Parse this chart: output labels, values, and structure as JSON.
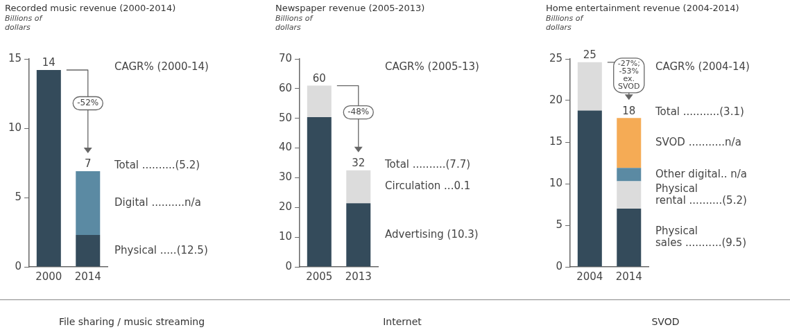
{
  "chart_data": [
    {
      "type": "bar",
      "title": "Recorded music revenue (2000-2014)",
      "ylabel": "Billions of dollars",
      "categories": [
        "2000",
        "2014"
      ],
      "stacked": true,
      "series": [
        {
          "name": "Physical .....(12.5)",
          "color": "#344b5b",
          "values": [
            14.2,
            2.3
          ]
        },
        {
          "name": "Digital ..........n/a",
          "color": "#5b8aa3",
          "values": [
            null,
            4.6
          ]
        }
      ],
      "ylim": [
        0,
        15
      ],
      "yticks": [
        0,
        5,
        10,
        15
      ],
      "totals": [
        "14",
        "7"
      ],
      "grid": false,
      "legend": false,
      "annotations": [
        "CAGR% (2000-14)",
        "Total ..........(5.2)",
        "-52%",
        "File sharing / music streaming"
      ]
    },
    {
      "type": "bar",
      "title": "Newspaper revenue (2005-2013)",
      "ylabel": "Billions of dollars",
      "categories": [
        "2005",
        "2013"
      ],
      "stacked": true,
      "series": [
        {
          "name": "Advertising (10.3)",
          "color": "#344b5b",
          "values": [
            50.4,
            21.4
          ]
        },
        {
          "name": "Circulation ...0.1",
          "color": "#dcdcdc",
          "values": [
            10.6,
            11.1
          ]
        }
      ],
      "ylim": [
        0,
        70
      ],
      "yticks": [
        0,
        10,
        20,
        30,
        40,
        50,
        60,
        70
      ],
      "totals": [
        "60",
        "32"
      ],
      "grid": false,
      "legend": false,
      "annotations": [
        "CAGR% (2005-13)",
        "Total ..........(7.7)",
        "-48%",
        "Internet"
      ]
    },
    {
      "type": "bar",
      "title": "Home entertainment revenue (2004-2014)",
      "ylabel": "Billions of dollars",
      "categories": [
        "2004",
        "2014"
      ],
      "stacked": true,
      "series": [
        {
          "name": "Physical\nsales ...........(9.5)",
          "color": "#344b5b",
          "values": [
            18.8,
            7.0
          ]
        },
        {
          "name": "Physical\nrental ..........(5.2)",
          "color": "#dcdcdc",
          "values": [
            5.8,
            3.3
          ]
        },
        {
          "name": "Other digital.. n/a",
          "color": "#5b8aa3",
          "values": [
            null,
            1.6
          ]
        },
        {
          "name": "SVOD ...........n/a",
          "color": "#f5ab55",
          "values": [
            null,
            6.0
          ]
        }
      ],
      "ylim": [
        0,
        25
      ],
      "yticks": [
        0,
        5,
        10,
        15,
        20,
        25
      ],
      "totals": [
        "25",
        "18"
      ],
      "grid": false,
      "legend": false,
      "annotations": [
        "CAGR% (2004-14)",
        "Total ...........(3.1)",
        "-27%;\n-53%\nex.\nSVOD",
        "SVOD"
      ]
    }
  ]
}
